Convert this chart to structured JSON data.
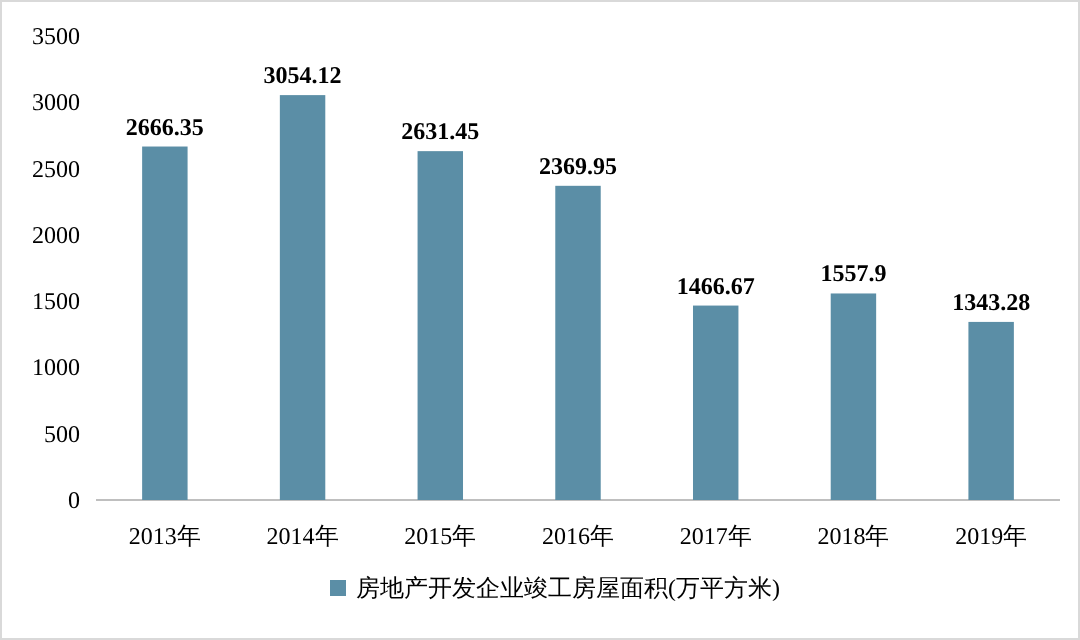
{
  "chart_data": {
    "type": "bar",
    "categories": [
      "2013年",
      "2014年",
      "2015年",
      "2016年",
      "2017年",
      "2018年",
      "2019年"
    ],
    "series": [
      {
        "name": "房地产开发企业竣工房屋面积(万平方米)",
        "color": "#5b8ea6",
        "values": [
          2666.35,
          3054.12,
          2631.45,
          2369.95,
          1466.67,
          1557.9,
          1343.28
        ]
      }
    ],
    "ylim": [
      0,
      3500
    ],
    "yticks": [
      0,
      500,
      1000,
      1500,
      2000,
      2500,
      3000,
      3500
    ],
    "data_labels": true,
    "legend": "bottom",
    "grid": false
  }
}
